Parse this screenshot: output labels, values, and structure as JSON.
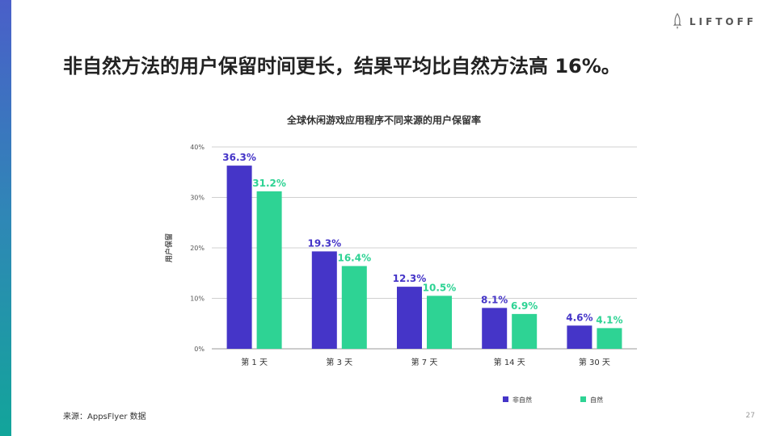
{
  "slide": {
    "title": "非自然方法的用户保留时间更长，结果平均比自然方法高 16%。",
    "logo_text": "LIFTOFF",
    "logo_icon": "rocket-icon",
    "source": "来源：AppsFlyer 数据",
    "page_number": "27"
  },
  "chart_data": {
    "type": "bar",
    "title": "全球休闲游戏应用程序不同来源的用户保留率",
    "ylabel": "用户保留",
    "xlabel": "",
    "categories": [
      "第 1 天",
      "第 3 天",
      "第 7 天",
      "第 14 天",
      "第 30 天"
    ],
    "ylim": [
      0,
      40
    ],
    "yticks": [
      0,
      10,
      20,
      30,
      40
    ],
    "ytick_labels": [
      "0%",
      "10%",
      "20%",
      "30%",
      "40%"
    ],
    "grid": true,
    "legend_position": "bottom-right",
    "series": [
      {
        "name": "非自然",
        "color": "#4535c8",
        "values": [
          36.3,
          19.3,
          12.3,
          8.1,
          4.6
        ],
        "labels": [
          "36.3%",
          "19.3%",
          "12.3%",
          "8.1%",
          "4.6%"
        ]
      },
      {
        "name": "自然",
        "color": "#2ed394",
        "values": [
          31.2,
          16.4,
          10.5,
          6.9,
          4.1
        ],
        "labels": [
          "31.2%",
          "16.4%",
          "10.5%",
          "6.9%",
          "4.1%"
        ]
      }
    ]
  }
}
